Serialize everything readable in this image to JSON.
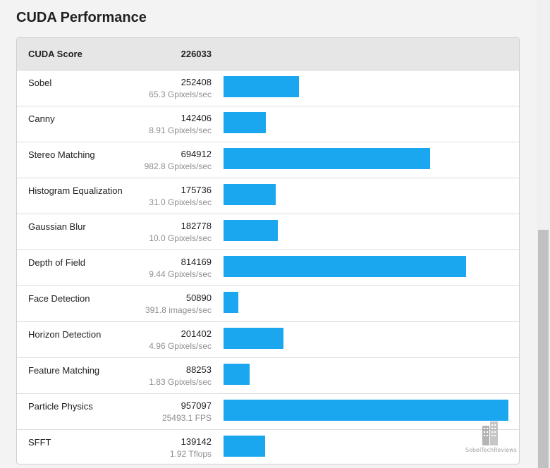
{
  "title": "CUDA Performance",
  "header": {
    "name": "CUDA Score",
    "score": "226033"
  },
  "rows": [
    {
      "name": "Sobel",
      "score": "252408",
      "metric": "65.3 Gpixels/sec",
      "value": 252408
    },
    {
      "name": "Canny",
      "score": "142406",
      "metric": "8.91 Gpixels/sec",
      "value": 142406
    },
    {
      "name": "Stereo Matching",
      "score": "694912",
      "metric": "982.8 Gpixels/sec",
      "value": 694912
    },
    {
      "name": "Histogram Equalization",
      "score": "175736",
      "metric": "31.0 Gpixels/sec",
      "value": 175736
    },
    {
      "name": "Gaussian Blur",
      "score": "182778",
      "metric": "10.0 Gpixels/sec",
      "value": 182778
    },
    {
      "name": "Depth of Field",
      "score": "814169",
      "metric": "9.44 Gpixels/sec",
      "value": 814169
    },
    {
      "name": "Face Detection",
      "score": "50890",
      "metric": "391.8 images/sec",
      "value": 50890
    },
    {
      "name": "Horizon Detection",
      "score": "201402",
      "metric": "4.96 Gpixels/sec",
      "value": 201402
    },
    {
      "name": "Feature Matching",
      "score": "88253",
      "metric": "1.83 Gpixels/sec",
      "value": 88253
    },
    {
      "name": "Particle Physics",
      "score": "957097",
      "metric": "25493.1 FPS",
      "value": 957097
    },
    {
      "name": "SFFT",
      "score": "139142",
      "metric": "1.92 Tflops",
      "value": 139142
    }
  ],
  "bar_color": "#1aa7f0",
  "watermark": "SobelTechReviews"
}
